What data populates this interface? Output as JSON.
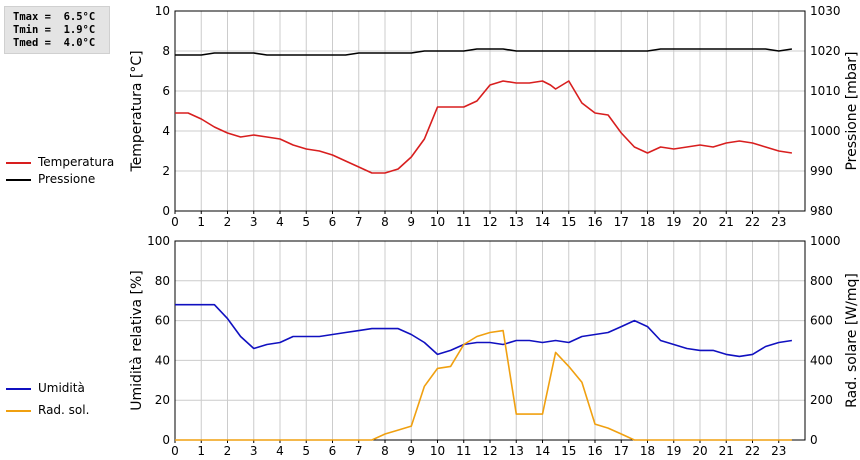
{
  "stats": {
    "tmax": "Tmax =  6.5°C",
    "tmin": "Tmin =  1.9°C",
    "tmed": "Tmed =  4.0°C"
  },
  "colors": {
    "temperature": "#d81e1e",
    "pressure": "#000000",
    "humidity": "#1010c0",
    "radiation": "#f0a010",
    "grid": "#cccccc"
  },
  "chart_data": [
    {
      "type": "line",
      "x_ticks": [
        "0",
        "1",
        "2",
        "3",
        "4",
        "5",
        "6",
        "7",
        "8",
        "9",
        "10",
        "11",
        "12",
        "13",
        "14",
        "15",
        "16",
        "17",
        "18",
        "19",
        "20",
        "21",
        "22",
        "23"
      ],
      "xlim": [
        0,
        24
      ],
      "ylabel": "Temperatura [°C]",
      "ylim": [
        0,
        10
      ],
      "y_ticks": [
        "0",
        "2",
        "4",
        "6",
        "8",
        "10"
      ],
      "ylabel_right": "Pressione [mbar]",
      "ylim_right": [
        980,
        1030
      ],
      "y_ticks_right": [
        "980",
        "990",
        "1000",
        "1010",
        "1020",
        "1030"
      ],
      "grid": true,
      "legend_position": "left",
      "series": [
        {
          "name": "Temperatura",
          "axis": "left",
          "color": "#d81e1e",
          "x": [
            0,
            0.5,
            1,
            1.5,
            2,
            2.5,
            3,
            3.5,
            4,
            4.5,
            5,
            5.5,
            6,
            6.5,
            7,
            7.5,
            8,
            8.5,
            9,
            9.5,
            10,
            10.5,
            11,
            11.5,
            12,
            12.5,
            13,
            13.5,
            14,
            14.3,
            14.5,
            15,
            15.5,
            16,
            16.5,
            17,
            17.5,
            18,
            18.5,
            19,
            19.5,
            20,
            20.5,
            21,
            21.5,
            22,
            22.5,
            23,
            23.5
          ],
          "values": [
            4.9,
            4.9,
            4.6,
            4.2,
            3.9,
            3.7,
            3.8,
            3.7,
            3.6,
            3.3,
            3.1,
            3.0,
            2.8,
            2.5,
            2.2,
            1.9,
            1.9,
            2.1,
            2.7,
            3.6,
            5.2,
            5.2,
            5.2,
            5.5,
            6.3,
            6.5,
            6.4,
            6.4,
            6.5,
            6.3,
            6.1,
            6.5,
            5.4,
            4.9,
            4.8,
            3.9,
            3.2,
            2.9,
            3.2,
            3.1,
            3.2,
            3.3,
            3.2,
            3.4,
            3.5,
            3.4,
            3.2,
            3.0,
            2.9
          ]
        },
        {
          "name": "Pressione",
          "axis": "right",
          "color": "#000000",
          "x": [
            0,
            1,
            1.5,
            3,
            3.5,
            6.5,
            7,
            9,
            9.5,
            11,
            11.5,
            12.5,
            13,
            18,
            18.5,
            22.5,
            23,
            23.5
          ],
          "values": [
            1019,
            1019,
            1019.5,
            1019.5,
            1019,
            1019,
            1019.5,
            1019.5,
            1020,
            1020,
            1020.5,
            1020.5,
            1020,
            1020,
            1020.5,
            1020.5,
            1020,
            1020.5
          ]
        }
      ]
    },
    {
      "type": "line",
      "x_ticks": [
        "0",
        "1",
        "2",
        "3",
        "4",
        "5",
        "6",
        "7",
        "8",
        "9",
        "10",
        "11",
        "12",
        "13",
        "14",
        "15",
        "16",
        "17",
        "18",
        "19",
        "20",
        "21",
        "22",
        "23"
      ],
      "xlim": [
        0,
        24
      ],
      "ylabel": "Umidità relativa [%]",
      "ylim": [
        0,
        100
      ],
      "y_ticks": [
        "0",
        "20",
        "40",
        "60",
        "80",
        "100"
      ],
      "ylabel_right": "Rad. solare [W/mq]",
      "ylim_right": [
        0,
        1000
      ],
      "y_ticks_right": [
        "0",
        "200",
        "400",
        "600",
        "800",
        "1000"
      ],
      "grid": true,
      "legend_position": "left",
      "series": [
        {
          "name": "Umidità",
          "axis": "left",
          "color": "#1010c0",
          "x": [
            0,
            0.5,
            1,
            1.5,
            2,
            2.5,
            3,
            3.5,
            4,
            4.5,
            5,
            5.5,
            6,
            6.5,
            7,
            7.5,
            8,
            8.5,
            9,
            9.5,
            10,
            10.5,
            11,
            11.5,
            12,
            12.5,
            13,
            13.5,
            14,
            14.5,
            15,
            15.5,
            16,
            16.5,
            17,
            17.5,
            18,
            18.5,
            19,
            19.5,
            20,
            20.5,
            21,
            21.5,
            22,
            22.5,
            23,
            23.5
          ],
          "values": [
            68,
            68,
            68,
            68,
            61,
            52,
            46,
            48,
            49,
            52,
            52,
            52,
            53,
            54,
            55,
            56,
            56,
            56,
            53,
            49,
            43,
            45,
            48,
            49,
            49,
            48,
            50,
            50,
            49,
            50,
            49,
            52,
            53,
            54,
            57,
            60,
            57,
            50,
            48,
            46,
            45,
            45,
            43,
            42,
            43,
            47,
            49,
            50
          ]
        },
        {
          "name": "Rad. sol.",
          "axis": "right",
          "color": "#f0a010",
          "x": [
            0,
            7.5,
            8,
            8.5,
            9,
            9.5,
            10,
            10.5,
            11,
            11.5,
            12,
            12.5,
            13,
            13.5,
            14,
            14.5,
            15,
            15.5,
            16,
            16.5,
            17,
            17.5,
            18,
            23.5
          ],
          "values": [
            0,
            0,
            30,
            50,
            70,
            270,
            360,
            370,
            480,
            520,
            540,
            550,
            130,
            130,
            130,
            440,
            370,
            290,
            80,
            60,
            30,
            0,
            0,
            0
          ]
        }
      ]
    }
  ]
}
